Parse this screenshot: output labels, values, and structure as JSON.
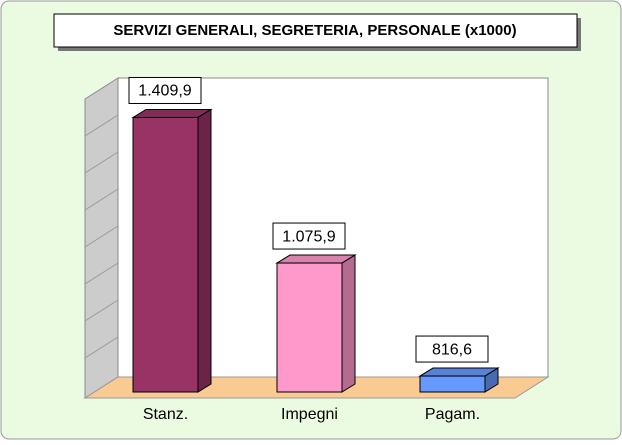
{
  "chart_data": {
    "type": "bar3d",
    "title": "SERVIZI GENERALI, SEGRETERIA, PERSONALE (x1000)",
    "categories": [
      "Stanz.",
      "Impegni",
      "Pagam."
    ],
    "values": [
      1409.9,
      1075.9,
      816.6
    ],
    "value_labels": [
      "1.409,9",
      "1.075,9",
      "816,6"
    ],
    "colors": [
      "#993366",
      "#ff99cc",
      "#6699ff"
    ],
    "ylim": [
      780,
      1450
    ]
  }
}
